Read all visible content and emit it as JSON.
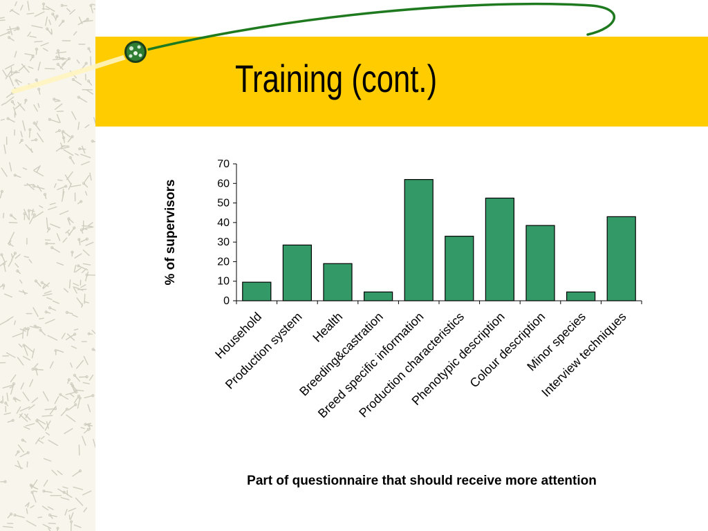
{
  "slide": {
    "title": "Training (cont.)"
  },
  "colors": {
    "band": "#FFCC00",
    "bar": "#339966",
    "swoosh": "#1F7A1F"
  },
  "chart_data": {
    "type": "bar",
    "categories": [
      "Household",
      "Production system",
      "Health",
      "Breeding&castration",
      "Breed specific information",
      "Production characteristics",
      "Phenotypic description",
      "Colour description",
      "Minor species",
      "Interview techniques"
    ],
    "values": [
      9.5,
      28.5,
      19,
      4.5,
      62,
      33,
      52.5,
      38.5,
      4.5,
      43
    ],
    "ylabel": "% of supervisors",
    "xlabel": "Part of questionnaire that should receive more attention",
    "ylim": [
      0,
      70
    ],
    "yticks": [
      0,
      10,
      20,
      30,
      40,
      50,
      60,
      70
    ],
    "grid": false,
    "legend": "none"
  }
}
